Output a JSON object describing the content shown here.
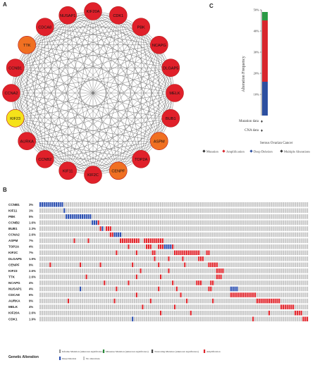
{
  "panels": {
    "a": "A",
    "b": "B",
    "c": "C"
  },
  "network": {
    "nodes": [
      {
        "label": "CDK1",
        "color": "#e0202a"
      },
      {
        "label": "PBK",
        "color": "#e0202a"
      },
      {
        "label": "NCAPG",
        "color": "#e0202a"
      },
      {
        "label": "DLGAP5",
        "color": "#e0202a"
      },
      {
        "label": "MELK",
        "color": "#e0202a"
      },
      {
        "label": "BUB1",
        "color": "#e0202a"
      },
      {
        "label": "ASPM",
        "color": "#f07022"
      },
      {
        "label": "TOP2A",
        "color": "#e0202a"
      },
      {
        "label": "CENPF",
        "color": "#f07022"
      },
      {
        "label": "KIF2C",
        "color": "#e0202a"
      },
      {
        "label": "KIF11",
        "color": "#e0202a"
      },
      {
        "label": "CCNB2",
        "color": "#e0202a"
      },
      {
        "label": "AURKA",
        "color": "#e0202a"
      },
      {
        "label": "KIF23",
        "color": "#f5e21a"
      },
      {
        "label": "CCNA2",
        "color": "#e0202a"
      },
      {
        "label": "CCNB1",
        "color": "#e0202a"
      },
      {
        "label": "TTK",
        "color": "#f07022"
      },
      {
        "label": "CDCA8",
        "color": "#e0202a"
      },
      {
        "label": "NUSAP1",
        "color": "#e0202a"
      },
      {
        "label": "KIF20A",
        "color": "#e0202a"
      }
    ]
  },
  "chart_data": {
    "type": "bar",
    "categories": [
      "Serous Ovarian Cancer"
    ],
    "ylabel": "Alteration Frequency",
    "ylim": [
      0,
      50
    ],
    "yticks": [
      "50%",
      "40%",
      "30%",
      "20%",
      "10%"
    ],
    "stack": [
      {
        "name": "Deep Deletion",
        "value": 16,
        "color": "#2c4fa0"
      },
      {
        "name": "Amplification",
        "value": 29,
        "color": "#d8262c"
      },
      {
        "name": "Multiple Alterations",
        "value": 4,
        "color": "#2a9a45"
      }
    ],
    "row_labels": [
      "Mutation data",
      "CNA data"
    ],
    "legend": [
      {
        "label": "Mutation",
        "color": "#333333"
      },
      {
        "label": "Amplification",
        "color": "#d8262c"
      },
      {
        "label": "Deep Deletion",
        "color": "#2c4fa0"
      },
      {
        "label": "Multiple Alterations",
        "color": "#333333"
      }
    ]
  },
  "oncoprint": {
    "genes": [
      "CCNB1",
      "KIF11",
      "PBK",
      "CCNB2",
      "BUB1",
      "CCNA2",
      "ASPM",
      "TOP2A",
      "KIF2C",
      "DLGAP5",
      "CENPF",
      "KIF23",
      "TTK",
      "NCAPG",
      "NUSAP1",
      "CDCA8",
      "AURKA",
      "MELK",
      "KIF20A",
      "CDK1"
    ],
    "percents": [
      "3%",
      "1%",
      "5%",
      "1.6%",
      "2.3%",
      "2.6%",
      "7%",
      "4%",
      "7%",
      "1.9%",
      "9%",
      "2.6%",
      "2.6%",
      "4%",
      "4%",
      "6%",
      "9%",
      "4%",
      "2.6%",
      "1.9%"
    ],
    "alterations": [
      [
        [
          0,
          12,
          "del"
        ]
      ],
      [
        [
          12,
          13,
          "del"
        ]
      ],
      [
        [
          13,
          17,
          "del"
        ],
        [
          17,
          26,
          "del"
        ]
      ],
      [
        [
          26,
          29,
          "del"
        ],
        [
          29,
          30,
          "amp"
        ]
      ],
      [
        [
          30,
          31,
          "amp"
        ],
        [
          31,
          32,
          "del"
        ],
        [
          33,
          36,
          "amp"
        ]
      ],
      [
        [
          35,
          37,
          "amp"
        ],
        [
          37,
          41,
          "del"
        ]
      ],
      [
        [
          17,
          18,
          "amp"
        ],
        [
          24,
          25,
          "amp"
        ],
        [
          40,
          50,
          "amp"
        ],
        [
          52,
          62,
          "amp"
        ]
      ],
      [
        [
          44,
          45,
          "amp"
        ],
        [
          53,
          56,
          "amp"
        ],
        [
          59,
          62,
          "amp"
        ],
        [
          62,
          66,
          "del"
        ],
        [
          66,
          67,
          "amp"
        ]
      ],
      [
        [
          38,
          39,
          "amp"
        ],
        [
          48,
          49,
          "amp"
        ],
        [
          56,
          58,
          "amp"
        ],
        [
          67,
          80,
          "amp"
        ],
        [
          83,
          85,
          "amp"
        ]
      ],
      [
        [
          57,
          58,
          "amp"
        ],
        [
          64,
          65,
          "amp"
        ],
        [
          71,
          72,
          "amp"
        ],
        [
          79,
          82,
          "amp"
        ]
      ],
      [
        [
          5,
          6,
          "amp"
        ],
        [
          20,
          21,
          "amp"
        ],
        [
          30,
          31,
          "amp"
        ],
        [
          46,
          47,
          "amp"
        ],
        [
          59,
          60,
          "amp"
        ],
        [
          72,
          73,
          "amp"
        ],
        [
          84,
          89,
          "amp"
        ]
      ],
      [
        [
          50,
          51,
          "amp"
        ],
        [
          64,
          65,
          "amp"
        ],
        [
          88,
          92,
          "amp"
        ]
      ],
      [
        [
          23,
          24,
          "amp"
        ],
        [
          48,
          49,
          "amp"
        ],
        [
          60,
          61,
          "amp"
        ],
        [
          88,
          91,
          "amp"
        ]
      ],
      [
        [
          32,
          33,
          "amp"
        ],
        [
          44,
          45,
          "amp"
        ],
        [
          66,
          67,
          "amp"
        ],
        [
          78,
          81,
          "amp"
        ],
        [
          85,
          87,
          "amp"
        ]
      ],
      [
        [
          20,
          21,
          "del"
        ],
        [
          38,
          39,
          "amp"
        ],
        [
          59,
          60,
          "amp"
        ],
        [
          68,
          69,
          "amp"
        ],
        [
          84,
          86,
          "amp"
        ],
        [
          95,
          99,
          "del"
        ]
      ],
      [
        [
          48,
          49,
          "amp"
        ],
        [
          70,
          71,
          "amp"
        ],
        [
          95,
          100,
          "amp"
        ],
        [
          100,
          108,
          "amp"
        ]
      ],
      [
        [
          14,
          15,
          "amp"
        ],
        [
          37,
          38,
          "amp"
        ],
        [
          55,
          56,
          "amp"
        ],
        [
          73,
          74,
          "amp"
        ],
        [
          86,
          87,
          "amp"
        ],
        [
          108,
          112,
          "amp"
        ],
        [
          112,
          120,
          "amp"
        ]
      ],
      [
        [
          51,
          52,
          "amp"
        ],
        [
          67,
          68,
          "amp"
        ],
        [
          120,
          122,
          "amp"
        ],
        [
          122,
          127,
          "amp"
        ]
      ],
      [
        [
          60,
          61,
          "amp"
        ],
        [
          75,
          76,
          "amp"
        ],
        [
          114,
          115,
          "amp"
        ],
        [
          127,
          131,
          "amp"
        ]
      ],
      [
        [
          46,
          47,
          "del"
        ],
        [
          106,
          107,
          "amp"
        ],
        [
          131,
          134,
          "amp"
        ]
      ]
    ],
    "legend_title": "Genetic Alteration",
    "legend": [
      {
        "label": "Inframe Mutation (unknown significance)",
        "color": "#9a9a9a"
      },
      {
        "label": "Missense Mutation (unknown significance)",
        "color": "#2a8a3a"
      },
      {
        "label": "Truncating Mutation (unknown significance)",
        "color": "#444444"
      },
      {
        "label": "Amplification",
        "color": "#e0232a"
      },
      {
        "label": "Deep Deletion",
        "color": "#2c4fb0"
      },
      {
        "label": "No alterations",
        "color": "#c8c8c8"
      }
    ]
  }
}
